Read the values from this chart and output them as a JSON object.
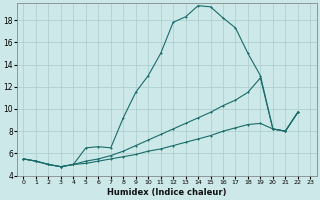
{
  "xlabel": "Humidex (Indice chaleur)",
  "bg_color": "#cce8e8",
  "grid_color": "#aacccc",
  "line_color": "#1a6b6b",
  "xlim": [
    -0.5,
    23.5
  ],
  "ylim": [
    4,
    19.5
  ],
  "xticks": [
    0,
    1,
    2,
    3,
    4,
    5,
    6,
    7,
    8,
    9,
    10,
    11,
    12,
    13,
    14,
    15,
    16,
    17,
    18,
    19,
    20,
    21,
    22,
    23
  ],
  "yticks": [
    4,
    6,
    8,
    10,
    12,
    14,
    16,
    18
  ],
  "line1_x": [
    0,
    1,
    2,
    3,
    4,
    5,
    6,
    7,
    8,
    9,
    10,
    11,
    12,
    13,
    14,
    15,
    16,
    17,
    18,
    19,
    20,
    21,
    22
  ],
  "line1_y": [
    5.5,
    5.3,
    5.0,
    4.8,
    5.0,
    6.5,
    6.6,
    6.5,
    9.2,
    11.5,
    13.0,
    15.0,
    17.8,
    18.3,
    19.3,
    19.2,
    18.2,
    17.3,
    15.0,
    13.0,
    8.2,
    8.0,
    9.7
  ],
  "line2_x": [
    0,
    1,
    2,
    3,
    4,
    5,
    6,
    7,
    8,
    9,
    10,
    11,
    12,
    13,
    14,
    15,
    16,
    17,
    18,
    19,
    20,
    21,
    22
  ],
  "line2_y": [
    5.5,
    5.3,
    5.0,
    4.8,
    5.0,
    5.3,
    5.5,
    5.8,
    6.2,
    6.7,
    7.2,
    7.7,
    8.2,
    8.7,
    9.2,
    9.7,
    10.3,
    10.8,
    11.5,
    12.8,
    8.2,
    8.0,
    9.7
  ],
  "line3_x": [
    0,
    1,
    2,
    3,
    4,
    5,
    6,
    7,
    8,
    9,
    10,
    11,
    12,
    13,
    14,
    15,
    16,
    17,
    18,
    19,
    20,
    21,
    22
  ],
  "line3_y": [
    5.5,
    5.3,
    5.0,
    4.8,
    5.0,
    5.1,
    5.3,
    5.5,
    5.7,
    5.9,
    6.2,
    6.4,
    6.7,
    7.0,
    7.3,
    7.6,
    8.0,
    8.3,
    8.6,
    8.7,
    8.2,
    8.0,
    9.7
  ]
}
